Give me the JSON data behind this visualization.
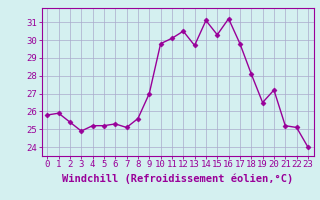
{
  "x": [
    0,
    1,
    2,
    3,
    4,
    5,
    6,
    7,
    8,
    9,
    10,
    11,
    12,
    13,
    14,
    15,
    16,
    17,
    18,
    19,
    20,
    21,
    22,
    23
  ],
  "y": [
    25.8,
    25.9,
    25.4,
    24.9,
    25.2,
    25.2,
    25.3,
    25.1,
    25.6,
    27.0,
    29.8,
    30.1,
    30.5,
    29.7,
    31.1,
    30.3,
    31.2,
    29.8,
    28.1,
    26.5,
    27.2,
    25.2,
    25.1,
    24.0
  ],
  "ylim": [
    23.5,
    31.8
  ],
  "yticks": [
    24,
    25,
    26,
    27,
    28,
    29,
    30,
    31
  ],
  "xlim": [
    -0.5,
    23.5
  ],
  "xticks": [
    0,
    1,
    2,
    3,
    4,
    5,
    6,
    7,
    8,
    9,
    10,
    11,
    12,
    13,
    14,
    15,
    16,
    17,
    18,
    19,
    20,
    21,
    22,
    23
  ],
  "line_color": "#990099",
  "marker": "D",
  "marker_size": 2.5,
  "bg_color": "#d4f0f0",
  "grid_color": "#aaaacc",
  "xlabel": "Windchill (Refroidissement éolien,°C)",
  "xlabel_color": "#990099",
  "xlabel_fontsize": 7.5,
  "tick_color": "#990099",
  "tick_fontsize": 6.5,
  "spine_color": "#990099",
  "line_width": 1.0
}
